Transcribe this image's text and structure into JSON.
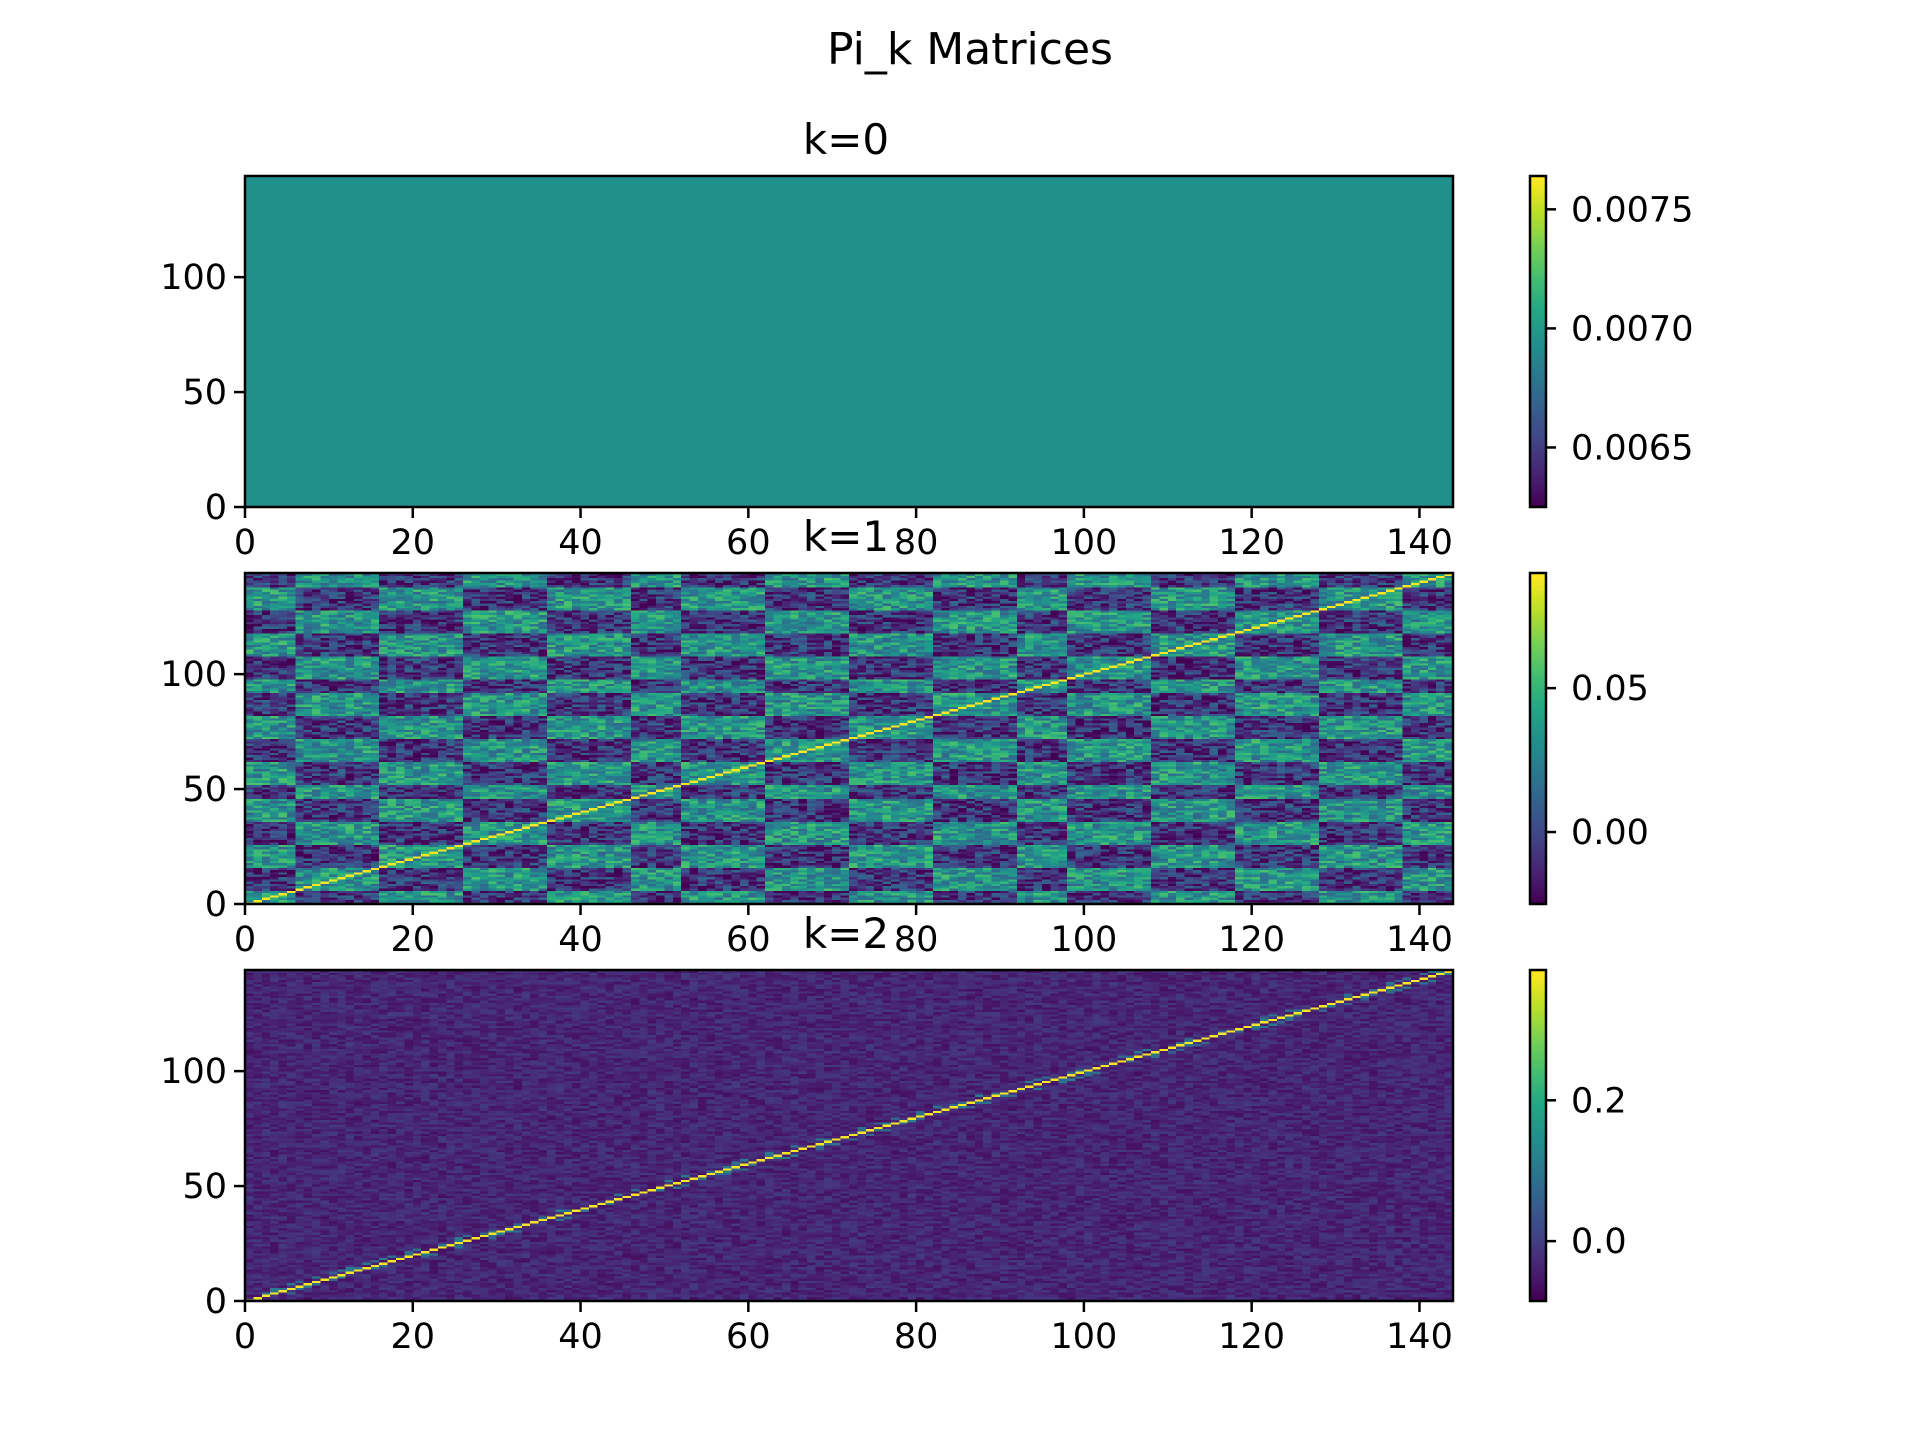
{
  "figure": {
    "suptitle": "Pi_k Matrices"
  },
  "chart_data": [
    {
      "type": "heatmap",
      "title": "k=0",
      "colormap": "viridis",
      "matrix_size": [
        144,
        144
      ],
      "xlim": [
        0,
        144
      ],
      "ylim": [
        0,
        144
      ],
      "xticks": [
        0,
        20,
        40,
        60,
        80,
        100,
        120,
        140
      ],
      "yticks": [
        0,
        50,
        100
      ],
      "color_range": [
        0.00625,
        0.00764
      ],
      "uniform_value": 0.00694,
      "colorbar_ticks": [
        0.0065,
        0.007,
        0.0075
      ],
      "colorbar_tick_labels": [
        "0.0065",
        "0.0070",
        "0.0075"
      ]
    },
    {
      "type": "heatmap",
      "title": "k=1",
      "colormap": "viridis",
      "matrix_size": [
        144,
        144
      ],
      "xlim": [
        0,
        144
      ],
      "ylim": [
        0,
        144
      ],
      "xticks": [
        0,
        20,
        40,
        60,
        80,
        100,
        120,
        140
      ],
      "yticks": [
        0,
        50,
        100
      ],
      "color_range": [
        -0.025,
        0.09
      ],
      "diagonal_value": 0.09,
      "block_boundaries": [
        0,
        6,
        16,
        26,
        36,
        46,
        52,
        62,
        72,
        82,
        92,
        98,
        108,
        118,
        128,
        138,
        144
      ],
      "colorbar_ticks": [
        0.0,
        0.05
      ],
      "colorbar_tick_labels": [
        "0.00",
        "0.05"
      ]
    },
    {
      "type": "heatmap",
      "title": "k=2",
      "colormap": "viridis",
      "matrix_size": [
        144,
        144
      ],
      "xlim": [
        0,
        144
      ],
      "ylim": [
        0,
        144
      ],
      "xticks": [
        0,
        20,
        40,
        60,
        80,
        100,
        120,
        140
      ],
      "yticks": [
        0,
        50,
        100
      ],
      "color_range": [
        -0.085,
        0.385
      ],
      "diagonal_value": 0.38,
      "colorbar_ticks": [
        0.0,
        0.2
      ],
      "colorbar_tick_labels": [
        "0.0",
        "0.2"
      ]
    }
  ]
}
